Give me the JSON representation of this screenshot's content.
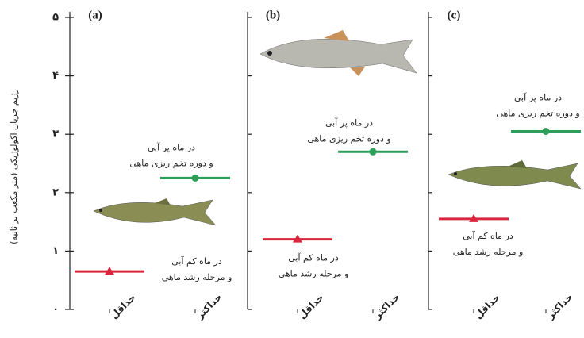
{
  "chart_data": {
    "type": "dot",
    "ylabel": "رژیم جریان اکولوژیکی (متر مکعب بر ثانیه)",
    "ylim": [
      0,
      5
    ],
    "yticks": [
      {
        "value": 0,
        "label": "۰"
      },
      {
        "value": 1,
        "label": "۱"
      },
      {
        "value": 2,
        "label": "۲"
      },
      {
        "value": 3,
        "label": "۳"
      },
      {
        "value": 4,
        "label": "۴"
      },
      {
        "value": 5,
        "label": "۵"
      }
    ],
    "colors": [
      "#d7263d",
      "#2e9e5b"
    ],
    "markers": [
      "triangle",
      "circle"
    ],
    "panels": [
      {
        "title": "(a)",
        "categories": [
          "حداقل",
          "حداکثر"
        ],
        "values": [
          0.65,
          2.25
        ],
        "annotations": [
          [
            "در ماه کم آبی",
            "و مرحله رشد ماهی"
          ],
          [
            "در ماه پر آبی",
            "و دوره تخم ریزی ماهی"
          ]
        ]
      },
      {
        "title": "(b)",
        "categories": [
          "حداقل",
          "حداکثر"
        ],
        "values": [
          1.2,
          2.7
        ],
        "annotations": [
          [
            "در ماه کم آبی",
            "و مرحله رشد ماهی"
          ],
          [
            "در ماه پر آبی",
            "و دوره تخم ریزی ماهی"
          ]
        ]
      },
      {
        "title": "(c)",
        "categories": [
          "حداقل",
          "حداکثر"
        ],
        "values": [
          1.55,
          3.05
        ],
        "annotations": [
          [
            "در ماه کم آبی",
            "و مرحله رشد ماهی"
          ],
          [
            "در ماه پر آبی",
            "و دوره تخم ریزی ماهی"
          ]
        ]
      }
    ]
  }
}
